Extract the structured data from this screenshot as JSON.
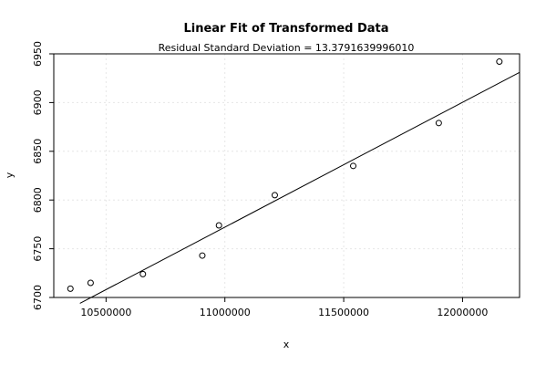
{
  "chart_data": {
    "type": "scatter",
    "title": "Linear Fit of Transformed Data",
    "subtitle": "Residual Standard Deviation =  13.3791639996010",
    "xlabel": "x",
    "ylabel": "y",
    "xlim": [
      10280000,
      12240000
    ],
    "ylim": [
      6700,
      6950
    ],
    "x_ticks": [
      10500000,
      11000000,
      11500000,
      12000000
    ],
    "x_tick_labels": [
      "10500000",
      "11000000",
      "11500000",
      "12000000"
    ],
    "y_ticks": [
      6700,
      6750,
      6800,
      6850,
      6900,
      6950
    ],
    "y_tick_labels": [
      "6700",
      "6750",
      "6800",
      "6850",
      "6900",
      "6950"
    ],
    "grid": true,
    "points": [
      {
        "x": 10350000,
        "y": 6709
      },
      {
        "x": 10435000,
        "y": 6715
      },
      {
        "x": 10655000,
        "y": 6724
      },
      {
        "x": 10905000,
        "y": 6743
      },
      {
        "x": 10975000,
        "y": 6774
      },
      {
        "x": 11210000,
        "y": 6805
      },
      {
        "x": 11540000,
        "y": 6835
      },
      {
        "x": 11900000,
        "y": 6879
      },
      {
        "x": 12155000,
        "y": 6942
      }
    ],
    "fit_line": {
      "x": [
        10390000,
        12240000
      ],
      "y": [
        6694,
        6931
      ]
    }
  }
}
